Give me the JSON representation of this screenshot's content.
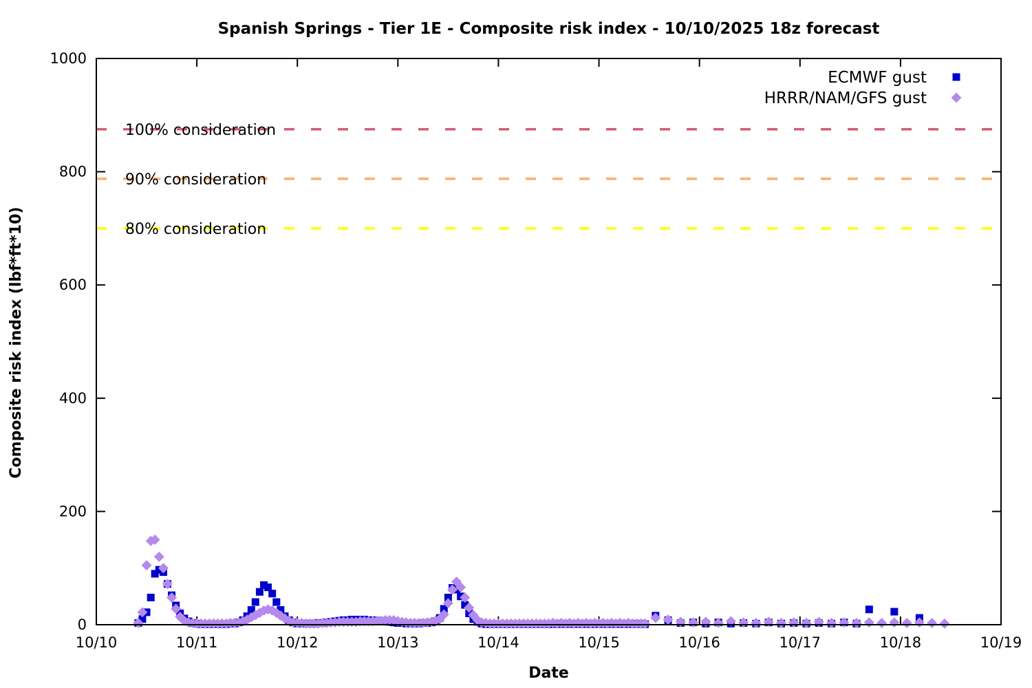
{
  "chart_data": {
    "type": "scatter",
    "title": "Spanish Springs - Tier 1E - Composite risk index - 10/10/2025 18z forecast",
    "xlabel": "Date",
    "ylabel": "Composite risk index (lbf*ft*10)",
    "x_tick_labels": [
      "10/10",
      "10/11",
      "10/12",
      "10/13",
      "10/14",
      "10/15",
      "10/16",
      "10/17",
      "10/18",
      "10/19"
    ],
    "x_range_days": [
      0,
      9
    ],
    "ylim": [
      0,
      1000
    ],
    "y_ticks": [
      0,
      200,
      400,
      600,
      800,
      1000
    ],
    "grid": "off",
    "legend_position": "top-right-inside",
    "thresholds": [
      {
        "label": "100% consideration",
        "value": 875,
        "color": "#d05c70"
      },
      {
        "label": "90% consideration",
        "value": 787.5,
        "color": "#f8b172"
      },
      {
        "label": "80% consideration",
        "value": 700,
        "color": "#ffff00"
      }
    ],
    "series": [
      {
        "name": "ECMWF gust",
        "marker": "square",
        "color": "#0000cd",
        "points": [
          [
            0.417,
            3
          ],
          [
            0.458,
            10
          ],
          [
            0.5,
            22
          ],
          [
            0.542,
            48
          ],
          [
            0.583,
            90
          ],
          [
            0.625,
            97
          ],
          [
            0.667,
            93
          ],
          [
            0.708,
            72
          ],
          [
            0.75,
            52
          ],
          [
            0.792,
            34
          ],
          [
            0.833,
            20
          ],
          [
            0.875,
            11
          ],
          [
            0.917,
            6
          ],
          [
            0.958,
            3
          ],
          [
            1.0,
            2
          ],
          [
            1.042,
            1
          ],
          [
            1.083,
            1
          ],
          [
            1.125,
            1
          ],
          [
            1.167,
            1
          ],
          [
            1.208,
            1
          ],
          [
            1.25,
            1
          ],
          [
            1.292,
            1
          ],
          [
            1.333,
            2
          ],
          [
            1.375,
            2
          ],
          [
            1.417,
            4
          ],
          [
            1.458,
            8
          ],
          [
            1.5,
            15
          ],
          [
            1.542,
            26
          ],
          [
            1.583,
            40
          ],
          [
            1.625,
            58
          ],
          [
            1.667,
            70
          ],
          [
            1.708,
            66
          ],
          [
            1.75,
            55
          ],
          [
            1.792,
            40
          ],
          [
            1.833,
            26
          ],
          [
            1.875,
            15
          ],
          [
            1.917,
            8
          ],
          [
            1.958,
            4
          ],
          [
            2.0,
            2
          ],
          [
            2.042,
            2
          ],
          [
            2.083,
            2
          ],
          [
            2.125,
            2
          ],
          [
            2.167,
            2
          ],
          [
            2.208,
            3
          ],
          [
            2.25,
            3
          ],
          [
            2.292,
            4
          ],
          [
            2.333,
            5
          ],
          [
            2.375,
            6
          ],
          [
            2.417,
            7
          ],
          [
            2.458,
            8
          ],
          [
            2.5,
            8
          ],
          [
            2.542,
            9
          ],
          [
            2.583,
            9
          ],
          [
            2.625,
            9
          ],
          [
            2.667,
            9
          ],
          [
            2.708,
            8
          ],
          [
            2.75,
            8
          ],
          [
            2.792,
            7
          ],
          [
            2.833,
            7
          ],
          [
            2.875,
            6
          ],
          [
            2.917,
            5
          ],
          [
            2.958,
            4
          ],
          [
            3.0,
            3
          ],
          [
            3.042,
            3
          ],
          [
            3.083,
            2
          ],
          [
            3.125,
            2
          ],
          [
            3.167,
            2
          ],
          [
            3.208,
            2
          ],
          [
            3.25,
            3
          ],
          [
            3.292,
            3
          ],
          [
            3.333,
            4
          ],
          [
            3.375,
            6
          ],
          [
            3.417,
            12
          ],
          [
            3.458,
            28
          ],
          [
            3.5,
            48
          ],
          [
            3.542,
            65
          ],
          [
            3.583,
            62
          ],
          [
            3.625,
            50
          ],
          [
            3.667,
            35
          ],
          [
            3.708,
            20
          ],
          [
            3.75,
            10
          ],
          [
            3.792,
            5
          ],
          [
            3.833,
            2
          ],
          [
            3.875,
            1
          ],
          [
            3.917,
            1
          ],
          [
            3.958,
            1
          ],
          [
            4.0,
            1
          ],
          [
            4.042,
            1
          ],
          [
            4.083,
            1
          ],
          [
            4.125,
            1
          ],
          [
            4.167,
            1
          ],
          [
            4.208,
            1
          ],
          [
            4.25,
            1
          ],
          [
            4.292,
            1
          ],
          [
            4.333,
            1
          ],
          [
            4.375,
            1
          ],
          [
            4.417,
            1
          ],
          [
            4.458,
            1
          ],
          [
            4.5,
            1
          ],
          [
            4.542,
            1
          ],
          [
            4.583,
            2
          ],
          [
            4.625,
            1
          ],
          [
            4.667,
            2
          ],
          [
            4.708,
            1
          ],
          [
            4.75,
            2
          ],
          [
            4.792,
            1
          ],
          [
            4.833,
            2
          ],
          [
            4.875,
            1
          ],
          [
            4.917,
            2
          ],
          [
            4.958,
            1
          ],
          [
            5.0,
            2
          ],
          [
            5.042,
            1
          ],
          [
            5.083,
            2
          ],
          [
            5.125,
            1
          ],
          [
            5.167,
            2
          ],
          [
            5.208,
            1
          ],
          [
            5.25,
            2
          ],
          [
            5.292,
            1
          ],
          [
            5.333,
            2
          ],
          [
            5.375,
            1
          ],
          [
            5.417,
            2
          ],
          [
            5.458,
            1
          ],
          [
            5.563,
            16
          ],
          [
            5.688,
            8
          ],
          [
            5.813,
            3
          ],
          [
            5.938,
            4
          ],
          [
            6.063,
            2
          ],
          [
            6.188,
            4
          ],
          [
            6.313,
            2
          ],
          [
            6.438,
            3
          ],
          [
            6.563,
            2
          ],
          [
            6.688,
            4
          ],
          [
            6.813,
            2
          ],
          [
            6.938,
            3
          ],
          [
            7.063,
            2
          ],
          [
            7.188,
            3
          ],
          [
            7.313,
            2
          ],
          [
            7.438,
            4
          ],
          [
            7.563,
            2
          ],
          [
            7.688,
            27
          ],
          [
            7.938,
            23
          ],
          [
            8.188,
            12
          ]
        ]
      },
      {
        "name": "HRRR/NAM/GFS gust",
        "marker": "diamond",
        "color": "#b48aec",
        "points": [
          [
            0.417,
            3
          ],
          [
            0.458,
            22
          ],
          [
            0.5,
            105
          ],
          [
            0.542,
            148
          ],
          [
            0.583,
            150
          ],
          [
            0.625,
            120
          ],
          [
            0.667,
            100
          ],
          [
            0.708,
            72
          ],
          [
            0.75,
            48
          ],
          [
            0.792,
            28
          ],
          [
            0.833,
            14
          ],
          [
            0.875,
            7
          ],
          [
            0.917,
            4
          ],
          [
            0.958,
            3
          ],
          [
            1.0,
            2
          ],
          [
            1.042,
            2
          ],
          [
            1.083,
            2
          ],
          [
            1.125,
            2
          ],
          [
            1.167,
            2
          ],
          [
            1.208,
            2
          ],
          [
            1.25,
            2
          ],
          [
            1.292,
            2
          ],
          [
            1.333,
            3
          ],
          [
            1.375,
            3
          ],
          [
            1.417,
            4
          ],
          [
            1.458,
            6
          ],
          [
            1.5,
            9
          ],
          [
            1.542,
            13
          ],
          [
            1.583,
            17
          ],
          [
            1.625,
            21
          ],
          [
            1.667,
            25
          ],
          [
            1.708,
            27
          ],
          [
            1.75,
            25
          ],
          [
            1.792,
            21
          ],
          [
            1.833,
            16
          ],
          [
            1.875,
            11
          ],
          [
            1.917,
            7
          ],
          [
            1.958,
            4
          ],
          [
            2.0,
            3
          ],
          [
            2.042,
            3
          ],
          [
            2.083,
            2
          ],
          [
            2.125,
            2
          ],
          [
            2.167,
            2
          ],
          [
            2.208,
            2
          ],
          [
            2.25,
            3
          ],
          [
            2.292,
            3
          ],
          [
            2.333,
            4
          ],
          [
            2.375,
            4
          ],
          [
            2.417,
            5
          ],
          [
            2.458,
            5
          ],
          [
            2.5,
            5
          ],
          [
            2.542,
            5
          ],
          [
            2.583,
            5
          ],
          [
            2.625,
            6
          ],
          [
            2.667,
            6
          ],
          [
            2.708,
            6
          ],
          [
            2.75,
            6
          ],
          [
            2.792,
            7
          ],
          [
            2.833,
            7
          ],
          [
            2.875,
            8
          ],
          [
            2.917,
            8
          ],
          [
            2.958,
            8
          ],
          [
            3.0,
            6
          ],
          [
            3.042,
            5
          ],
          [
            3.083,
            4
          ],
          [
            3.125,
            3
          ],
          [
            3.167,
            3
          ],
          [
            3.208,
            3
          ],
          [
            3.25,
            3
          ],
          [
            3.292,
            4
          ],
          [
            3.333,
            5
          ],
          [
            3.375,
            7
          ],
          [
            3.417,
            10
          ],
          [
            3.458,
            18
          ],
          [
            3.5,
            38
          ],
          [
            3.542,
            62
          ],
          [
            3.583,
            76
          ],
          [
            3.625,
            66
          ],
          [
            3.667,
            48
          ],
          [
            3.708,
            30
          ],
          [
            3.75,
            17
          ],
          [
            3.792,
            8
          ],
          [
            3.833,
            4
          ],
          [
            3.875,
            3
          ],
          [
            3.917,
            2
          ],
          [
            3.958,
            2
          ],
          [
            4.0,
            2
          ],
          [
            4.042,
            2
          ],
          [
            4.083,
            2
          ],
          [
            4.125,
            2
          ],
          [
            4.167,
            2
          ],
          [
            4.208,
            2
          ],
          [
            4.25,
            2
          ],
          [
            4.292,
            2
          ],
          [
            4.333,
            2
          ],
          [
            4.375,
            2
          ],
          [
            4.417,
            2
          ],
          [
            4.458,
            2
          ],
          [
            4.5,
            2
          ],
          [
            4.542,
            3
          ],
          [
            4.583,
            2
          ],
          [
            4.625,
            3
          ],
          [
            4.667,
            2
          ],
          [
            4.708,
            3
          ],
          [
            4.75,
            2
          ],
          [
            4.792,
            3
          ],
          [
            4.833,
            2
          ],
          [
            4.875,
            3
          ],
          [
            4.917,
            2
          ],
          [
            4.958,
            3
          ],
          [
            5.0,
            2
          ],
          [
            5.042,
            3
          ],
          [
            5.083,
            2
          ],
          [
            5.125,
            3
          ],
          [
            5.167,
            2
          ],
          [
            5.208,
            3
          ],
          [
            5.25,
            2
          ],
          [
            5.292,
            3
          ],
          [
            5.333,
            2
          ],
          [
            5.375,
            2
          ],
          [
            5.417,
            2
          ],
          [
            5.458,
            2
          ],
          [
            5.563,
            12
          ],
          [
            5.688,
            9
          ],
          [
            5.813,
            5
          ],
          [
            5.938,
            4
          ],
          [
            6.063,
            5
          ],
          [
            6.188,
            3
          ],
          [
            6.313,
            6
          ],
          [
            6.438,
            4
          ],
          [
            6.563,
            3
          ],
          [
            6.688,
            5
          ],
          [
            6.813,
            3
          ],
          [
            6.938,
            4
          ],
          [
            7.063,
            3
          ],
          [
            7.188,
            5
          ],
          [
            7.313,
            3
          ],
          [
            7.438,
            4
          ],
          [
            7.563,
            3
          ],
          [
            7.688,
            4
          ],
          [
            7.813,
            3
          ],
          [
            7.938,
            4
          ],
          [
            8.063,
            3
          ],
          [
            8.188,
            4
          ],
          [
            8.313,
            3
          ],
          [
            8.438,
            2
          ]
        ]
      }
    ]
  }
}
